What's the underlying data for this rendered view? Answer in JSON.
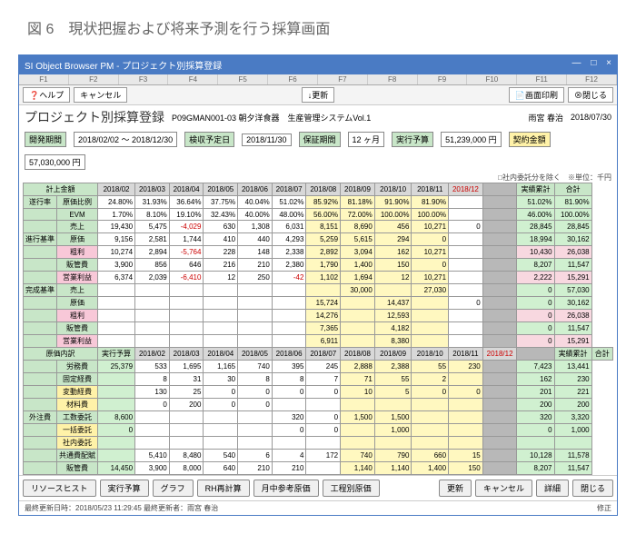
{
  "caption": "図 6　現状把握および将来予測を行う採算画面",
  "window": {
    "title": "SI Object Browser PM - プロジェクト別採算登録"
  },
  "toolbar": {
    "help": "ヘルプ",
    "cancel": "キャンセル",
    "update": "更新",
    "print": "画面印刷",
    "close": "閉じる"
  },
  "page_title": "プロジェクト別採算登録",
  "proj_code": "P09GMAN001-03 朝夕洋食器　生産管理システムVol.1",
  "author": "雨宮 春治",
  "date": "2018/07/30",
  "fields": {
    "dev_period_lbl": "開発期間",
    "dev_period": "2018/02/02 ～ 2018/12/30",
    "kenshu_lbl": "検収予定日",
    "kenshu": "2018/11/30",
    "hosho_lbl": "保証期間",
    "hosho": "12 ヶ月",
    "jikko_lbl": "実行予算",
    "jikko": "51,239,000 円",
    "keiyaku_lbl": "契約金額",
    "keiyaku": "57,030,000 円"
  },
  "unit_note": "□社内委託分を除く　※単位：千円",
  "months": [
    "2018/02",
    "2018/03",
    "2018/04",
    "2018/05",
    "2018/06",
    "2018/07",
    "2018/08",
    "2018/09",
    "2018/10",
    "2018/11",
    "2018/12"
  ],
  "section1": {
    "header": "計上金額",
    "total_col": "実績累計",
    "total2_col": "合計",
    "rows": [
      {
        "grp": "遂行率",
        "lbl": "原価比例",
        "vals": [
          "24.80%",
          "31.93%",
          "36.64%",
          "37.75%",
          "40.04%",
          "51.02%",
          "85.92%",
          "81.18%",
          "91.90%",
          "81.90%",
          ""
        ],
        "t1": "51.02%",
        "t2": "81.90%"
      },
      {
        "grp": "",
        "lbl": "EVM",
        "vals": [
          "1.70%",
          "8.10%",
          "19.10%",
          "32.43%",
          "40.00%",
          "48.00%",
          "56.00%",
          "72.00%",
          "100.00%",
          "100.00%",
          ""
        ],
        "t1": "46.00%",
        "t2": "100.00%"
      },
      {
        "grp": "",
        "lbl": "売上",
        "vals": [
          "19,430",
          "5,475",
          "-4,029",
          "630",
          "1,308",
          "6,031",
          "8,151",
          "8,690",
          "456",
          "10,271",
          "0"
        ],
        "t1": "28,845",
        "t2": "28,845"
      },
      {
        "grp": "進行基準",
        "lbl": "原価",
        "vals": [
          "9,156",
          "2,581",
          "1,744",
          "410",
          "440",
          "4,293",
          "5,259",
          "5,615",
          "294",
          "0",
          ""
        ],
        "t1": "18,994",
        "t2": "30,162"
      },
      {
        "grp": "",
        "lbl": "粗利",
        "cls": "rhp",
        "vals": [
          "10,274",
          "2,894",
          "-5,764",
          "228",
          "148",
          "2,338",
          "2,892",
          "3,094",
          "162",
          "10,271",
          ""
        ],
        "t1": "10,430",
        "t2": "26,038",
        "hlp": true
      },
      {
        "grp": "",
        "lbl": "販管費",
        "vals": [
          "3,900",
          "856",
          "646",
          "216",
          "210",
          "2,380",
          "1,790",
          "1,400",
          "150",
          "0",
          ""
        ],
        "t1": "8,207",
        "t2": "11,547"
      },
      {
        "grp": "",
        "lbl": "営業利益",
        "cls": "rhp",
        "vals": [
          "6,374",
          "2,039",
          "-6,410",
          "12",
          "250",
          "-42",
          "1,102",
          "1,694",
          "12",
          "10,271",
          ""
        ],
        "t1": "2,222",
        "t2": "15,291",
        "hlp": true
      },
      {
        "grp": "完成基準",
        "lbl": "売上",
        "vals": [
          "",
          "",
          "",
          "",
          "",
          "",
          "",
          "30,000",
          "",
          "27,030",
          ""
        ],
        "t1": "0",
        "t2": "57,030"
      },
      {
        "grp": "",
        "lbl": "原価",
        "vals": [
          "",
          "",
          "",
          "",
          "",
          "",
          "15,724",
          "",
          "14,437",
          "",
          "0"
        ],
        "t1": "0",
        "t2": "30,162"
      },
      {
        "grp": "",
        "lbl": "粗利",
        "cls": "rhp",
        "vals": [
          "",
          "",
          "",
          "",
          "",
          "",
          "14,276",
          "",
          "12,593",
          "",
          ""
        ],
        "t1": "0",
        "t2": "26,038",
        "hlp": true
      },
      {
        "grp": "",
        "lbl": "販管費",
        "vals": [
          "",
          "",
          "",
          "",
          "",
          "",
          "7,365",
          "",
          "4,182",
          "",
          ""
        ],
        "t1": "0",
        "t2": "11,547"
      },
      {
        "grp": "",
        "lbl": "営業利益",
        "cls": "rhp",
        "vals": [
          "",
          "",
          "",
          "",
          "",
          "",
          "6,911",
          "",
          "8,380",
          "",
          ""
        ],
        "t1": "0",
        "t2": "15,291",
        "hlp": true
      }
    ]
  },
  "section2": {
    "header": "原価内訳",
    "budget_col": "実行予算",
    "rows": [
      {
        "lbl": "労務費",
        "bud": "25,379",
        "vals": [
          "533",
          "1,695",
          "1,165",
          "740",
          "395",
          "245",
          "2,888",
          "2,388",
          "55",
          "230",
          ""
        ],
        "t1": "7,423",
        "t2": "13,441"
      },
      {
        "lbl": "固定経費",
        "bud": "",
        "vals": [
          "8",
          "31",
          "30",
          "8",
          "8",
          "7",
          "71",
          "55",
          "2",
          "",
          ""
        ],
        "t1": "162",
        "t2": "230"
      },
      {
        "lbl": "変動経費",
        "cls": "rhy",
        "bud": "",
        "vals": [
          "130",
          "25",
          "0",
          "0",
          "0",
          "0",
          "10",
          "5",
          "0",
          "0",
          ""
        ],
        "t1": "201",
        "t2": "221"
      },
      {
        "lbl": "材料費",
        "cls": "rhy",
        "bud": "",
        "vals": [
          "0",
          "200",
          "0",
          "0",
          "",
          "",
          "",
          "",
          "",
          "",
          ""
        ],
        "t1": "200",
        "t2": "200"
      },
      {
        "lbl": "工数委託",
        "grp": "外注費",
        "bud": "8,600",
        "vals": [
          "",
          "",
          "",
          "",
          "320",
          "0",
          "1,500",
          "1,500",
          "",
          "",
          ""
        ],
        "t1": "320",
        "t2": "3,320"
      },
      {
        "lbl": "一括委託",
        "cls": "rhy",
        "bud": "0",
        "vals": [
          "",
          "",
          "",
          "",
          "0",
          "0",
          "",
          "1,000",
          "",
          "",
          ""
        ],
        "t1": "0",
        "t2": "1,000"
      },
      {
        "lbl": "社内委託",
        "cls": "rhy",
        "bud": "",
        "vals": [
          "",
          "",
          "",
          "",
          "",
          "",
          "",
          "",
          "",
          "",
          ""
        ],
        "t1": "",
        "t2": ""
      },
      {
        "lbl": "共通費配賦",
        "bud": "",
        "vals": [
          "5,410",
          "8,480",
          "540",
          "6",
          "4",
          "172",
          "740",
          "790",
          "660",
          "15",
          ""
        ],
        "t1": "10,128",
        "t2": "11,578"
      },
      {
        "lbl": "販管費",
        "bud": "14,450",
        "vals": [
          "3,900",
          "8,000",
          "640",
          "210",
          "210",
          "",
          "1,140",
          "1,140",
          "1,400",
          "150",
          ""
        ],
        "t1": "8,207",
        "t2": "11,547"
      }
    ]
  },
  "footer_btns": [
    "リソースヒスト",
    "実行予算",
    "グラフ",
    "RH再計算",
    "月中参考原価",
    "工程別原価"
  ],
  "footer_btns2": [
    "更新",
    "キャンセル",
    "詳細",
    "閉じる"
  ],
  "status": {
    "left": "最終更新日時：2018/05/23 11:29:45 最終更新者：雨宮 春治",
    "right": "修正"
  },
  "colors": {
    "green": "#c8e6c8",
    "yellow": "#fff2a8",
    "pink": "#f8c8d8",
    "blue": "#4a7bc4"
  }
}
